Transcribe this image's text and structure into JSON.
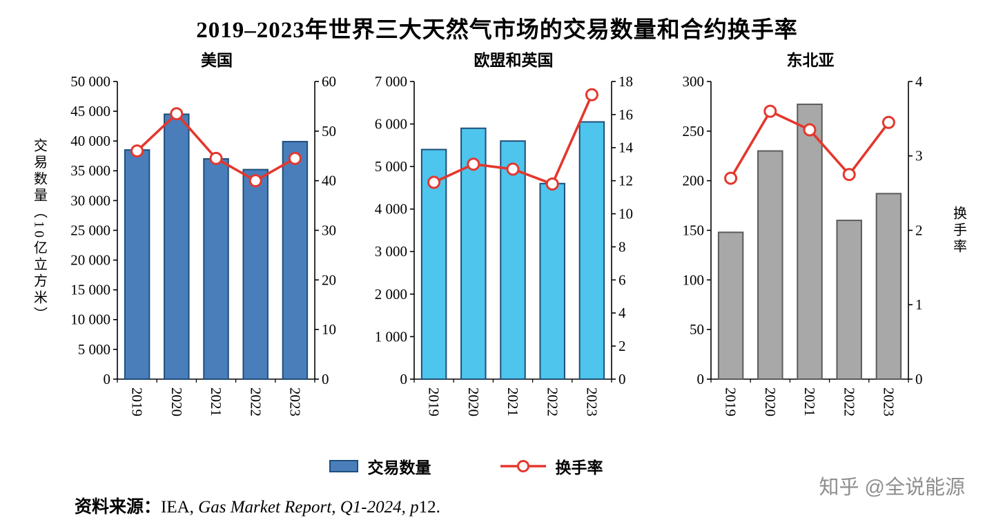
{
  "header": {
    "title": "2019–2023年世界三大天然气市场的交易数量和合约换手率"
  },
  "axis_labels": {
    "left": "交易数量（10亿立方米）",
    "right": "换手率"
  },
  "legend": {
    "items": [
      {
        "label": "交易数量",
        "type": "bar"
      },
      {
        "label": "换手率",
        "type": "line"
      }
    ]
  },
  "source": {
    "prefix": "资料来源：",
    "plain": "IEA, ",
    "italic": "Gas Market Report, Q1-2024, p",
    "suffix": "12."
  },
  "watermark": "知乎 @全说能源",
  "chart_data": [
    {
      "type": "bar+line",
      "title": "美国",
      "categories": [
        "2019",
        "2020",
        "2021",
        "2022",
        "2023"
      ],
      "bar_series": {
        "name": "交易数量",
        "unit": "10亿立方米",
        "axis": "left",
        "values": [
          38500,
          44500,
          37000,
          35200,
          39900
        ],
        "color": "#4A7EBB",
        "border": "#1F4E79"
      },
      "line_series": {
        "name": "换手率",
        "axis": "right",
        "values": [
          46,
          53.5,
          44.5,
          40,
          44.5
        ],
        "color": "#E4372D"
      },
      "left_axis": {
        "min": 0,
        "max": 50000,
        "step": 5000
      },
      "right_axis": {
        "min": 0,
        "max": 60,
        "step": 10
      }
    },
    {
      "type": "bar+line",
      "title": "欧盟和英国",
      "categories": [
        "2019",
        "2020",
        "2021",
        "2022",
        "2023"
      ],
      "bar_series": {
        "name": "交易数量",
        "unit": "10亿立方米",
        "axis": "left",
        "values": [
          5400,
          5900,
          5600,
          4600,
          6050
        ],
        "color": "#4EC5EC",
        "border": "#1F4E79"
      },
      "line_series": {
        "name": "换手率",
        "axis": "right",
        "values": [
          11.9,
          13.0,
          12.7,
          11.8,
          17.2
        ],
        "color": "#E4372D"
      },
      "left_axis": {
        "min": 0,
        "max": 7000,
        "step": 1000
      },
      "right_axis": {
        "min": 0,
        "max": 18,
        "step": 2
      }
    },
    {
      "type": "bar+line",
      "title": "东北亚",
      "categories": [
        "2019",
        "2020",
        "2021",
        "2022",
        "2023"
      ],
      "bar_series": {
        "name": "交易数量",
        "unit": "10亿立方米",
        "axis": "left",
        "values": [
          148,
          230,
          277,
          160,
          187
        ],
        "color": "#A8A8A8",
        "border": "#5A5A5A"
      },
      "line_series": {
        "name": "换手率",
        "axis": "right",
        "values": [
          2.7,
          3.6,
          3.35,
          2.75,
          3.45
        ],
        "color": "#E4372D"
      },
      "left_axis": {
        "min": 0,
        "max": 300,
        "step": 50
      },
      "right_axis": {
        "min": 0,
        "max": 4,
        "step": 1
      }
    }
  ]
}
